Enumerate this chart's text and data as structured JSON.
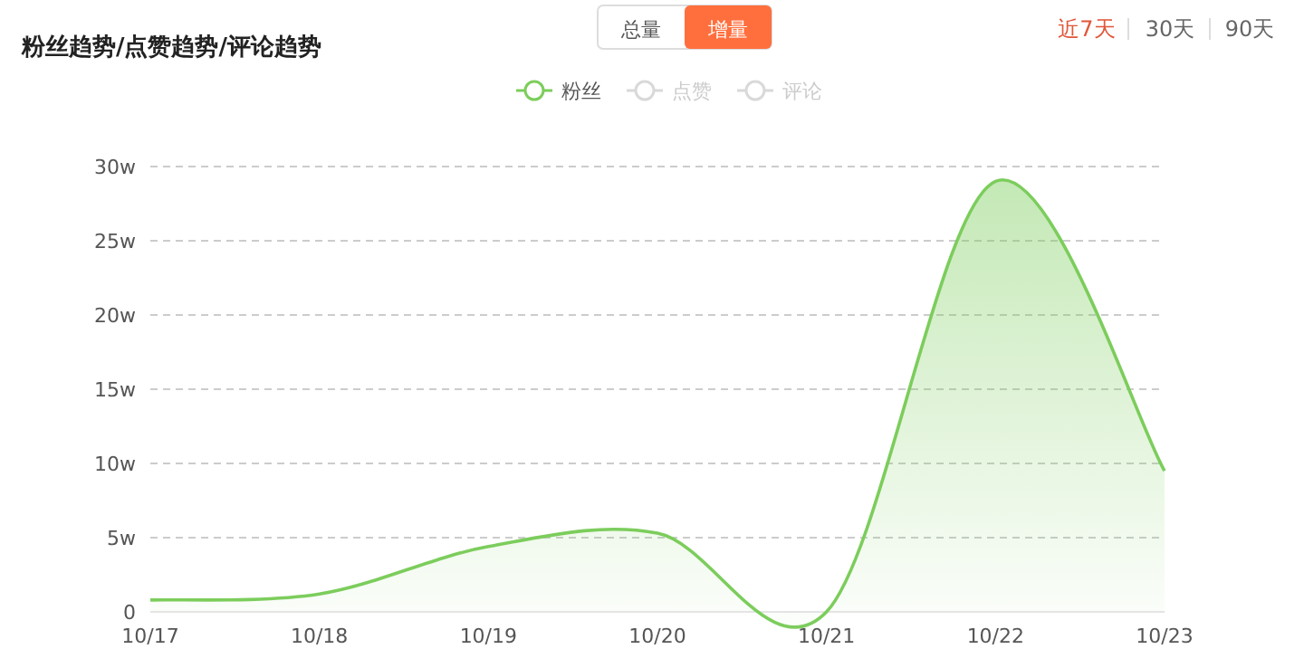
{
  "chart_data": {
    "type": "area",
    "title": "粉丝趋势/点赞趋势/评论趋势",
    "annotations": [
      "总量",
      "增量",
      "近7天",
      "30天",
      "90天"
    ],
    "categories": [
      "10/17",
      "10/18",
      "10/19",
      "10/20",
      "10/21",
      "10/22",
      "10/23"
    ],
    "series": [
      {
        "name": "粉丝",
        "color": "#7ccd5c",
        "values": [
          0.8,
          1.2,
          4.4,
          5.3,
          0,
          29,
          9.5
        ]
      },
      {
        "name": "点赞",
        "color": "#d9d9d9",
        "values": [
          null,
          null,
          null,
          null,
          null,
          null,
          null
        ]
      },
      {
        "name": "评论",
        "color": "#d9d9d9",
        "values": [
          null,
          null,
          null,
          null,
          null,
          null,
          null
        ]
      }
    ],
    "ylim": [
      0,
      30
    ],
    "yticks": [
      0,
      {
        "value": 5,
        "label": "5w"
      },
      {
        "value": 10,
        "label": "10w"
      },
      {
        "value": 15,
        "label": "15w"
      },
      {
        "value": 20,
        "label": "20w"
      },
      {
        "value": 25,
        "label": "25w"
      },
      {
        "value": 30,
        "label": "30w"
      }
    ],
    "grid": "y",
    "legend": "top",
    "marker": "none",
    "line_style": "solid"
  }
}
